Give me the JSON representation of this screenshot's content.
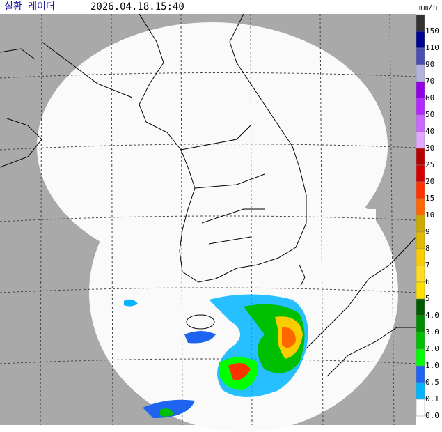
{
  "header": {
    "title": "실황 레이더",
    "timestamp": "2026.04.18.15:40"
  },
  "legend": {
    "unit": "mm/h",
    "items": [
      {
        "label": "150",
        "color": "#333333"
      },
      {
        "label": "110",
        "color": "#000390"
      },
      {
        "label": "90",
        "color": "#4c4eb1"
      },
      {
        "label": "70",
        "color": "#b3b4de"
      },
      {
        "label": "60",
        "color": "#9300e4"
      },
      {
        "label": "50",
        "color": "#b329ff"
      },
      {
        "label": "40",
        "color": "#c969ff"
      },
      {
        "label": "30",
        "color": "#e0a9ff"
      },
      {
        "label": "25",
        "color": "#b40000"
      },
      {
        "label": "20",
        "color": "#d20000"
      },
      {
        "label": "15",
        "color": "#ff3300"
      },
      {
        "label": "10",
        "color": "#ff6600"
      },
      {
        "label": "9",
        "color": "#ccaa00"
      },
      {
        "label": "8",
        "color": "#e0b900"
      },
      {
        "label": "7",
        "color": "#f9cd00"
      },
      {
        "label": "6",
        "color": "#ffdc1f"
      },
      {
        "label": "5",
        "color": "#ffe100"
      },
      {
        "label": "4.0",
        "color": "#005a00"
      },
      {
        "label": "3.0",
        "color": "#008c00"
      },
      {
        "label": "2.0",
        "color": "#00be00"
      },
      {
        "label": "1.0",
        "color": "#00ff00"
      },
      {
        "label": "0.5",
        "color": "#1e64f0"
      },
      {
        "label": "0.1",
        "color": "#00b4ff"
      },
      {
        "label": "0.0",
        "color": "#ffffff"
      }
    ]
  }
}
